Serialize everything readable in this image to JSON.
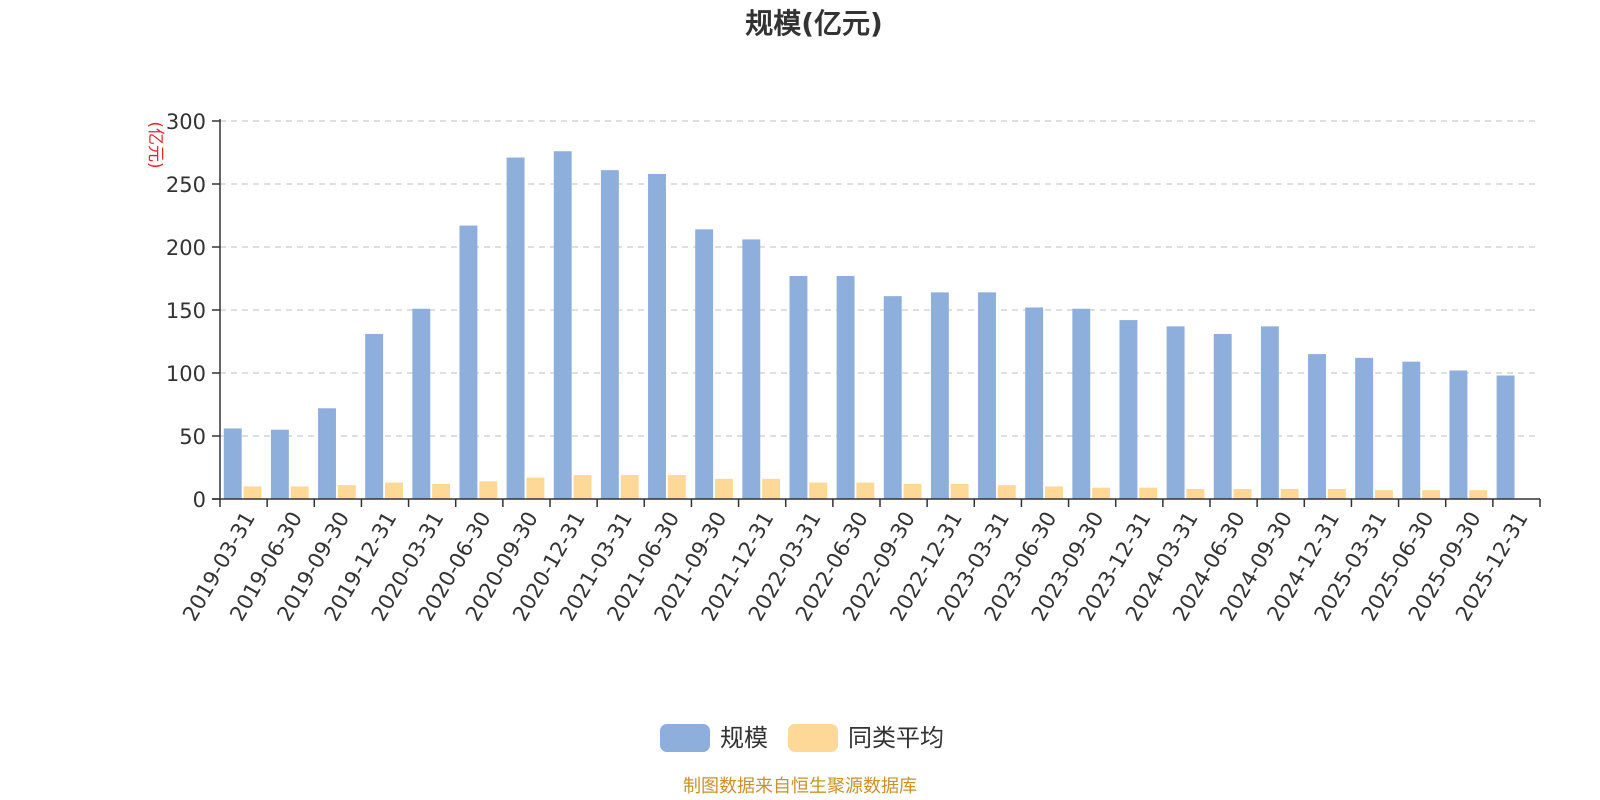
{
  "chart_data": {
    "type": "bar",
    "title": "规模(亿元)",
    "ylabel": "(亿元)",
    "ylim": [
      0,
      300
    ],
    "yticks": [
      0,
      50,
      100,
      150,
      200,
      250,
      300
    ],
    "grid": true,
    "categories": [
      "2019-03-31",
      "2019-06-30",
      "2019-09-30",
      "2019-12-31",
      "2020-03-31",
      "2020-06-30",
      "2020-09-30",
      "2020-12-31",
      "2021-03-31",
      "2021-06-30",
      "2021-09-30",
      "2021-12-31",
      "2022-03-31",
      "2022-06-30",
      "2022-09-30",
      "2022-12-31",
      "2023-03-31",
      "2023-06-30",
      "2023-09-30",
      "2023-12-31",
      "2024-03-31",
      "2024-06-30",
      "2024-09-30",
      "2024-12-31",
      "2025-03-31",
      "2025-06-30",
      "2025-09-30",
      "2025-12-31"
    ],
    "series": [
      {
        "name": "规模",
        "color": "#8eaedb",
        "values": [
          56,
          55,
          72,
          131,
          151,
          217,
          271,
          276,
          261,
          258,
          214,
          206,
          177,
          177,
          161,
          164,
          164,
          152,
          151,
          142,
          137,
          131,
          137,
          115,
          112,
          109,
          102,
          98
        ]
      },
      {
        "name": "同类平均",
        "color": "#fdd897",
        "values": [
          10,
          10,
          11,
          13,
          12,
          14,
          17,
          19,
          19,
          19,
          16,
          16,
          13,
          13,
          12,
          12,
          11,
          10,
          9,
          9,
          8,
          8,
          8,
          8,
          7,
          7,
          7,
          null
        ]
      }
    ],
    "legend_position": "bottom-center"
  },
  "source_text": "制图数据来自恒生聚源数据库",
  "colors": {
    "axis": "#333333",
    "grid": "#cccccc",
    "unit": "#e8262a",
    "source": "#c9922a"
  }
}
